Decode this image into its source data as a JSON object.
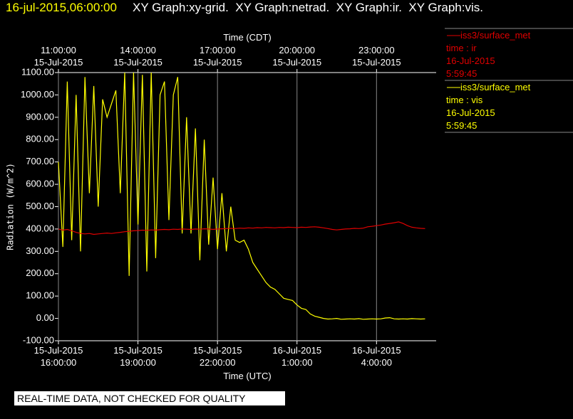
{
  "header": {
    "timestamp": "16-jul-2015,06:00:00",
    "graphs": "XY Graph:xy-grid.  XY Graph:netrad.  XY Graph:ir.  XY Graph:vis."
  },
  "footer": "REAL-TIME DATA, NOT CHECKED FOR QUALITY",
  "chart_data": {
    "type": "line",
    "x_label": "Time (UTC)",
    "x2_label": "Time (CDT)",
    "y_label": "Radiation (W/m^2)",
    "xlim": [
      "2015-07-15T16:00:00",
      "2015-07-16T06:15:00"
    ],
    "xticks": [
      {
        "value": "2015-07-15T16:00:00",
        "label": "15-Jul-2015\n16:00:00"
      },
      {
        "value": "2015-07-15T19:00:00",
        "label": "15-Jul-2015\n19:00:00"
      },
      {
        "value": "2015-07-15T22:00:00",
        "label": "15-Jul-2015\n22:00:00"
      },
      {
        "value": "2015-07-16T01:00:00",
        "label": "16-Jul-2015\n1:00:00"
      },
      {
        "value": "2015-07-16T04:00:00",
        "label": "16-Jul-2015\n4:00:00"
      }
    ],
    "x2ticks": [
      {
        "value": "2015-07-15T16:00:00",
        "label": "11:00:00\n15-Jul-2015"
      },
      {
        "value": "2015-07-15T19:00:00",
        "label": "14:00:00\n15-Jul-2015"
      },
      {
        "value": "2015-07-15T22:00:00",
        "label": "17:00:00\n15-Jul-2015"
      },
      {
        "value": "2015-07-16T01:00:00",
        "label": "20:00:00\n15-Jul-2015"
      },
      {
        "value": "2015-07-16T04:00:00",
        "label": "23:00:00\n15-Jul-2015"
      }
    ],
    "ylim": [
      -100,
      1100
    ],
    "yticks": [
      {
        "value": -100,
        "label": "-100.00"
      },
      {
        "value": 0,
        "label": "0.00"
      },
      {
        "value": 100,
        "label": "100.00"
      },
      {
        "value": 200,
        "label": "200.00"
      },
      {
        "value": 300,
        "label": "300.00"
      },
      {
        "value": 400,
        "label": "400.00"
      },
      {
        "value": 500,
        "label": "500.00"
      },
      {
        "value": 600,
        "label": "600.00"
      },
      {
        "value": 700,
        "label": "700.00"
      },
      {
        "value": 800,
        "label": "800.00"
      },
      {
        "value": 900,
        "label": "900.00"
      },
      {
        "value": 1000,
        "label": "1000.00"
      },
      {
        "value": 1100,
        "label": "1100.00"
      }
    ],
    "grid": true,
    "x": [
      "2015-07-15T16:00:00",
      "2015-07-15T16:10:00",
      "2015-07-15T16:20:00",
      "2015-07-15T16:30:00",
      "2015-07-15T16:40:00",
      "2015-07-15T16:50:00",
      "2015-07-15T17:00:00",
      "2015-07-15T17:10:00",
      "2015-07-15T17:20:00",
      "2015-07-15T17:30:00",
      "2015-07-15T17:40:00",
      "2015-07-15T17:50:00",
      "2015-07-15T18:00:00",
      "2015-07-15T18:10:00",
      "2015-07-15T18:20:00",
      "2015-07-15T18:30:00",
      "2015-07-15T18:40:00",
      "2015-07-15T18:50:00",
      "2015-07-15T19:00:00",
      "2015-07-15T19:10:00",
      "2015-07-15T19:20:00",
      "2015-07-15T19:30:00",
      "2015-07-15T19:40:00",
      "2015-07-15T19:50:00",
      "2015-07-15T20:00:00",
      "2015-07-15T20:10:00",
      "2015-07-15T20:20:00",
      "2015-07-15T20:30:00",
      "2015-07-15T20:40:00",
      "2015-07-15T20:50:00",
      "2015-07-15T21:00:00",
      "2015-07-15T21:10:00",
      "2015-07-15T21:20:00",
      "2015-07-15T21:30:00",
      "2015-07-15T21:40:00",
      "2015-07-15T21:50:00",
      "2015-07-15T22:00:00",
      "2015-07-15T22:10:00",
      "2015-07-15T22:20:00",
      "2015-07-15T22:30:00",
      "2015-07-15T22:40:00",
      "2015-07-15T22:50:00",
      "2015-07-15T23:00:00",
      "2015-07-15T23:10:00",
      "2015-07-15T23:20:00",
      "2015-07-15T23:30:00",
      "2015-07-15T23:40:00",
      "2015-07-15T23:50:00",
      "2015-07-16T00:00:00",
      "2015-07-16T00:10:00",
      "2015-07-16T00:20:00",
      "2015-07-16T00:30:00",
      "2015-07-16T00:40:00",
      "2015-07-16T00:50:00",
      "2015-07-16T01:00:00",
      "2015-07-16T01:10:00",
      "2015-07-16T01:20:00",
      "2015-07-16T01:30:00",
      "2015-07-16T01:40:00",
      "2015-07-16T01:50:00",
      "2015-07-16T02:00:00",
      "2015-07-16T02:10:00",
      "2015-07-16T02:20:00",
      "2015-07-16T02:30:00",
      "2015-07-16T02:40:00",
      "2015-07-16T02:50:00",
      "2015-07-16T03:00:00",
      "2015-07-16T03:10:00",
      "2015-07-16T03:20:00",
      "2015-07-16T03:30:00",
      "2015-07-16T03:40:00",
      "2015-07-16T03:50:00",
      "2015-07-16T04:00:00",
      "2015-07-16T04:10:00",
      "2015-07-16T04:20:00",
      "2015-07-16T04:30:00",
      "2015-07-16T04:40:00",
      "2015-07-16T04:50:00",
      "2015-07-16T05:00:00",
      "2015-07-16T05:10:00",
      "2015-07-16T05:20:00",
      "2015-07-16T05:30:00",
      "2015-07-16T05:40:00",
      "2015-07-16T05:50:00"
    ],
    "series": [
      {
        "name": "iss3/surface_met",
        "color": "#e00000",
        "legend_lines": [
          "time : ir",
          "16-Jul-2015",
          "5:59:45"
        ],
        "values": [
          400,
          395,
          398,
          392,
          385,
          380,
          378,
          380,
          376,
          378,
          380,
          382,
          380,
          383,
          385,
          388,
          390,
          392,
          393,
          395,
          394,
          396,
          395,
          397,
          398,
          397,
          399,
          398,
          400,
          399,
          398,
          400,
          399,
          401,
          400,
          398,
          400,
          401,
          402,
          403,
          402,
          404,
          403,
          405,
          404,
          406,
          405,
          407,
          406,
          405,
          407,
          406,
          408,
          407,
          406,
          408,
          407,
          409,
          410,
          408,
          405,
          402,
          398,
          396,
          398,
          400,
          401,
          403,
          402,
          404,
          410,
          412,
          415,
          418,
          422,
          425,
          428,
          432,
          425,
          415,
          408,
          405,
          403,
          402
        ]
      },
      {
        "name": "iss3/surface_met",
        "color": "#ffff00",
        "legend_lines": [
          "time : vis",
          "16-Jul-2015",
          "5:59:45"
        ],
        "values": [
          700,
          320,
          1060,
          350,
          1000,
          300,
          1080,
          560,
          1040,
          500,
          980,
          900,
          960,
          1020,
          560,
          1100,
          190,
          1100,
          420,
          1090,
          210,
          1100,
          270,
          1000,
          1060,
          440,
          1000,
          1080,
          380,
          900,
          380,
          850,
          260,
          800,
          330,
          630,
          310,
          560,
          300,
          500,
          350,
          340,
          350,
          310,
          250,
          220,
          190,
          160,
          140,
          130,
          110,
          90,
          85,
          80,
          60,
          45,
          40,
          20,
          10,
          5,
          0,
          -3,
          -2,
          0,
          -4,
          -3,
          -2,
          -3,
          -1,
          -4,
          -3,
          -2,
          -3,
          -2,
          2,
          3,
          -2,
          -3,
          -2,
          -3,
          -1,
          -2,
          -3,
          -2
        ]
      }
    ]
  }
}
